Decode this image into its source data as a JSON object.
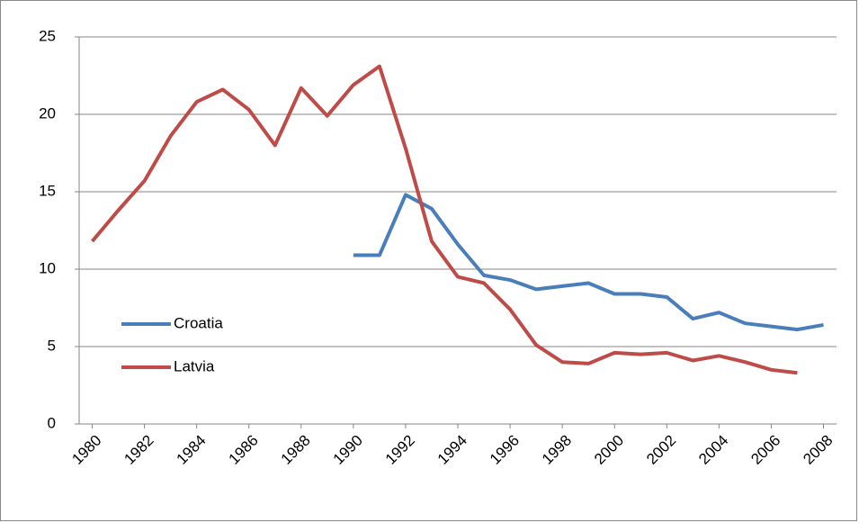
{
  "chart_data": {
    "type": "line",
    "x": [
      1980,
      1981,
      1982,
      1983,
      1984,
      1985,
      1986,
      1987,
      1988,
      1989,
      1990,
      1991,
      1992,
      1993,
      1994,
      1995,
      1996,
      1997,
      1998,
      1999,
      2000,
      2001,
      2002,
      2003,
      2004,
      2005,
      2006,
      2007,
      2008
    ],
    "series": [
      {
        "name": "Croatia",
        "color": "#4a7ebb",
        "values": [
          null,
          null,
          null,
          null,
          null,
          null,
          null,
          null,
          null,
          null,
          10.9,
          10.9,
          14.8,
          13.9,
          11.6,
          9.6,
          9.3,
          8.7,
          8.9,
          9.1,
          8.4,
          8.4,
          8.2,
          6.8,
          7.2,
          6.5,
          6.3,
          6.1,
          6.4
        ]
      },
      {
        "name": "Latvia",
        "color": "#be4b48",
        "values": [
          11.8,
          13.8,
          15.7,
          18.6,
          20.8,
          21.6,
          20.3,
          18.0,
          21.7,
          19.9,
          21.9,
          23.1,
          17.8,
          11.8,
          9.5,
          9.1,
          7.4,
          5.1,
          4.0,
          3.9,
          4.6,
          4.5,
          4.6,
          4.1,
          4.4,
          4.0,
          3.5,
          3.3,
          null
        ]
      }
    ],
    "xlim": [
      1979.5,
      2008.5
    ],
    "xticks": [
      1980,
      1982,
      1984,
      1986,
      1988,
      1990,
      1992,
      1994,
      1996,
      1998,
      2000,
      2002,
      2004,
      2006,
      2008
    ],
    "ylim": [
      0,
      25
    ],
    "yticks": [
      0,
      5,
      10,
      15,
      20,
      25
    ],
    "grid": true,
    "legend": "left"
  }
}
